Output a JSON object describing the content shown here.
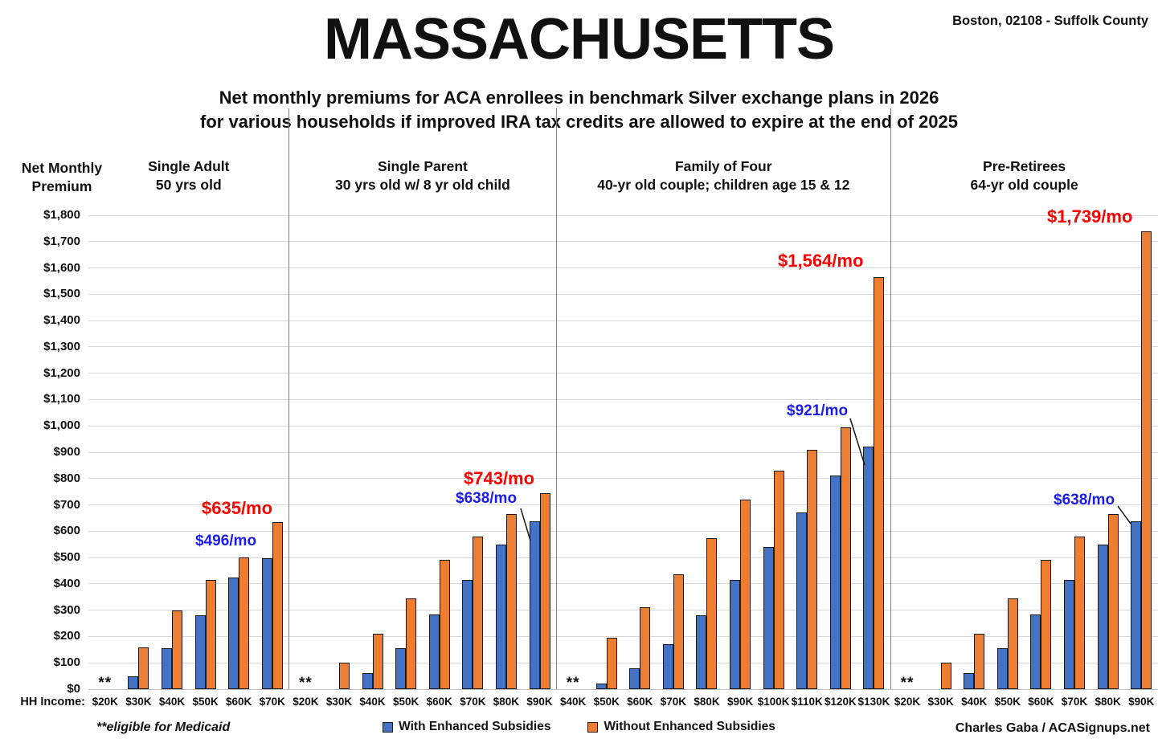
{
  "header": {
    "title": "MASSACHUSETTS",
    "location": "Boston, 02108 - Suffolk County",
    "subtitle_line1": "Net monthly premiums for ACA enrollees in benchmark Silver exchange plans in 2026",
    "subtitle_line2": "for various households if improved IRA tax credits are allowed to expire at the end of 2025"
  },
  "y_axis": {
    "title_line1": "Net Monthly",
    "title_line2": "Premium"
  },
  "x_axis": {
    "label": "HH Income:"
  },
  "footer": {
    "medicaid_note": "**eligible for Medicaid",
    "credit": "Charles Gaba / ACASignups.net"
  },
  "medicaid_marker": "**",
  "legend": [
    {
      "label": "With Enhanced Subsidies",
      "color": "#4472C4"
    },
    {
      "label": "Without Enhanced Subsidies",
      "color": "#ED7D31"
    }
  ],
  "chart_data": {
    "type": "bar",
    "title": "Net monthly premiums for ACA enrollees in benchmark Silver exchange plans in 2026 for various households if improved IRA tax credits are allowed to expire at the end of 2025",
    "ylabel": "Net Monthly Premium",
    "xlabel": "HH Income",
    "ylim": [
      0,
      1800
    ],
    "y_tick_step": 100,
    "grid": true,
    "legend_position": "bottom",
    "y_tick_labels": [
      "$0",
      "$100",
      "$200",
      "$300",
      "$400",
      "$500",
      "$600",
      "$700",
      "$800",
      "$900",
      "$1,000",
      "$1,100",
      "$1,200",
      "$1,300",
      "$1,400",
      "$1,500",
      "$1,600",
      "$1,700",
      "$1,800"
    ],
    "series_names": [
      "With Enhanced Subsidies",
      "Without Enhanced Subsidies"
    ],
    "colors": {
      "with_enhanced": "#4472C4",
      "without_enhanced": "#ED7D31",
      "annotation_red": "#FF0000",
      "annotation_blue": "#1B1BEC"
    },
    "medicaid_note": "** = eligible for Medicaid (no premium bars shown)",
    "panels": [
      {
        "title_line1": "Single Adult",
        "title_line2": "50 yrs old",
        "categories": [
          "$20K",
          "$30K",
          "$40K",
          "$50K",
          "$60K",
          "$70K"
        ],
        "with_enhanced": [
          null,
          50,
          155,
          280,
          425,
          496
        ],
        "without_enhanced": [
          null,
          160,
          300,
          415,
          500,
          635
        ]
      },
      {
        "title_line1": "Single Parent",
        "title_line2": "30 yrs old w/ 8 yr old child",
        "categories": [
          "$20K",
          "$30K",
          "$40K",
          "$50K",
          "$60K",
          "$70K",
          "$80K",
          "$90K"
        ],
        "with_enhanced": [
          null,
          0,
          60,
          155,
          285,
          415,
          550,
          638
        ],
        "without_enhanced": [
          null,
          100,
          210,
          345,
          490,
          580,
          665,
          743
        ]
      },
      {
        "title_line1": "Family of Four",
        "title_line2": "40-yr old couple; children age 15 & 12",
        "categories": [
          "$40K",
          "$50K",
          "$60K",
          "$70K",
          "$80K",
          "$90K",
          "$100K",
          "$110K",
          "$120K",
          "$130K"
        ],
        "with_enhanced": [
          null,
          20,
          80,
          170,
          280,
          415,
          540,
          670,
          810,
          921
        ],
        "without_enhanced": [
          null,
          195,
          310,
          435,
          575,
          720,
          830,
          910,
          995,
          1564
        ]
      },
      {
        "title_line1": "Pre-Retirees",
        "title_line2": "64-yr old couple",
        "categories": [
          "$20K",
          "$30K",
          "$40K",
          "$50K",
          "$60K",
          "$70K",
          "$80K",
          "$90K"
        ],
        "with_enhanced": [
          null,
          0,
          60,
          155,
          285,
          415,
          550,
          638
        ],
        "without_enhanced": [
          null,
          100,
          210,
          345,
          490,
          580,
          665,
          1739
        ]
      }
    ],
    "annotations": [
      {
        "text": "$496/mo",
        "color": "blue",
        "panel": 0,
        "category": "$70K",
        "series": "with_enhanced"
      },
      {
        "text": "$635/mo",
        "color": "red",
        "panel": 0,
        "category": "$70K",
        "series": "without_enhanced"
      },
      {
        "text": "$638/mo",
        "color": "blue",
        "panel": 1,
        "category": "$90K",
        "series": "with_enhanced"
      },
      {
        "text": "$743/mo",
        "color": "red",
        "panel": 1,
        "category": "$90K",
        "series": "without_enhanced"
      },
      {
        "text": "$921/mo",
        "color": "blue",
        "panel": 2,
        "category": "$130K",
        "series": "with_enhanced"
      },
      {
        "text": "$1,564/mo",
        "color": "red",
        "panel": 2,
        "category": "$130K",
        "series": "without_enhanced"
      },
      {
        "text": "$638/mo",
        "color": "blue",
        "panel": 3,
        "category": "$90K",
        "series": "with_enhanced"
      },
      {
        "text": "$1,739/mo",
        "color": "red",
        "panel": 3,
        "category": "$90K",
        "series": "without_enhanced"
      }
    ]
  }
}
